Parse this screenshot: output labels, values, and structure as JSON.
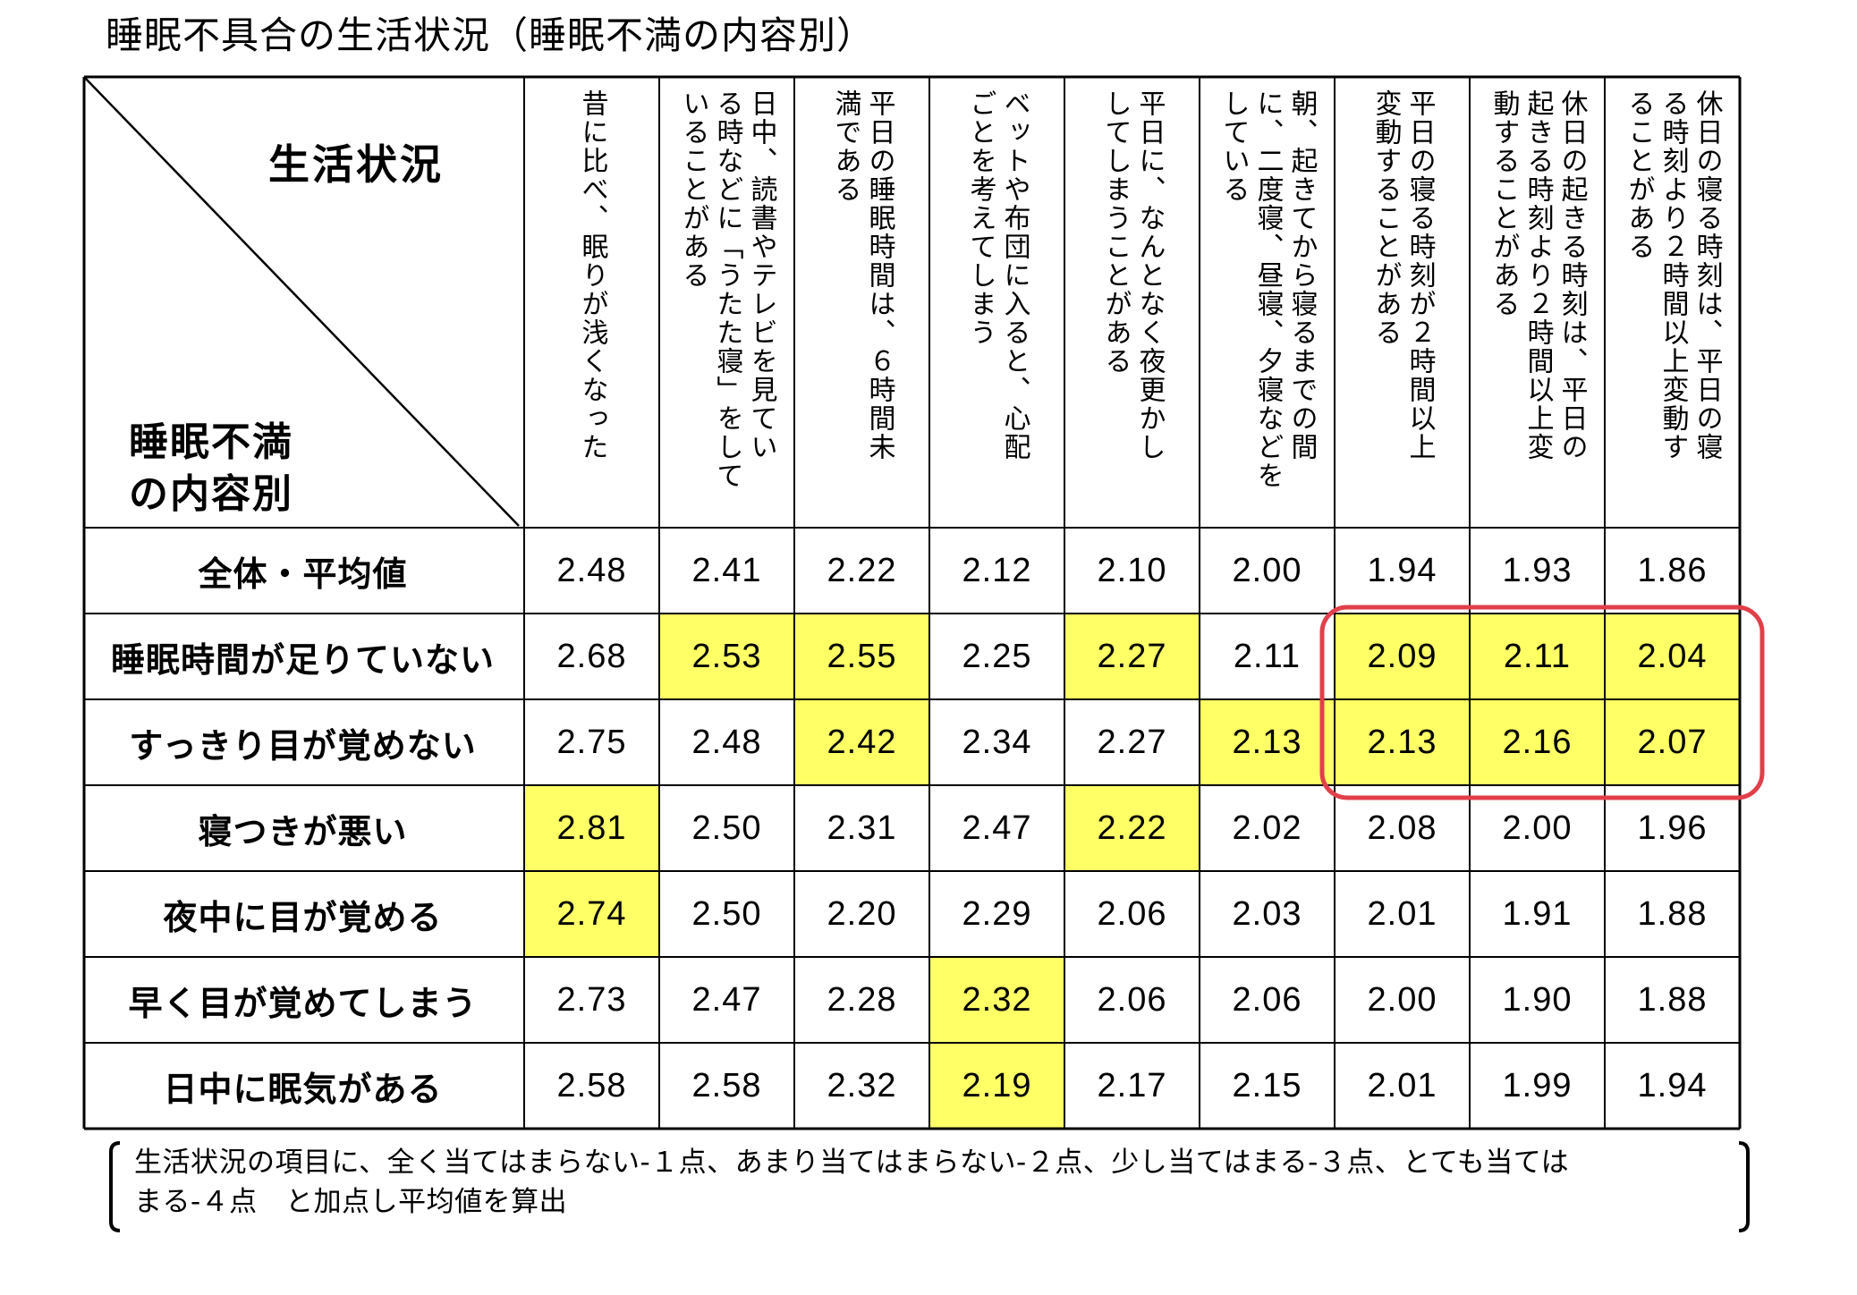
{
  "title": "睡眠不具合の生活状況（睡眠不満の内容別）",
  "corner": {
    "top_label": "生活状況",
    "bottom_label_line1": "睡眠不満",
    "bottom_label_line2": "の内容別"
  },
  "colors": {
    "highlight": "#ffff66",
    "frame": "#e0404a",
    "grid": "#000000"
  },
  "chart_data": {
    "type": "table",
    "columns": [
      {
        "lines": [
          "昔に比べ、眠りが浅くなった"
        ]
      },
      {
        "lines": [
          "日中、読書やテレビを見てい",
          "る時などに「うたた寝」をして",
          "いることがある"
        ]
      },
      {
        "lines": [
          "平日の睡眠時間は、６時間未",
          "満である"
        ]
      },
      {
        "lines": [
          "ベットや布団に入ると、心配",
          "ごとを考えてしまう"
        ]
      },
      {
        "lines": [
          "平日に、なんとなく夜更かし",
          "してしまうことがある"
        ]
      },
      {
        "lines": [
          "朝、起きてから寝るまでの間",
          "に、二度寝、昼寝、夕寝などを",
          "している"
        ]
      },
      {
        "lines": [
          "平日の寝る時刻が２時間以上",
          "変動することがある"
        ]
      },
      {
        "lines": [
          "休日の起きる時刻は、平日の",
          "起きる時刻より２時間以上変",
          "動することがある"
        ]
      },
      {
        "lines": [
          "休日の寝る時刻は、平日の寝",
          "る時刻より２時間以上変動す",
          "ることがある"
        ]
      }
    ],
    "rows": [
      {
        "label": "全体・平均値",
        "values": [
          "2.48",
          "2.41",
          "2.22",
          "2.12",
          "2.10",
          "2.00",
          "1.94",
          "1.93",
          "1.86"
        ],
        "highlight": []
      },
      {
        "label": "睡眠時間が足りていない",
        "values": [
          "2.68",
          "2.53",
          "2.55",
          "2.25",
          "2.27",
          "2.11",
          "2.09",
          "2.11",
          "2.04"
        ],
        "highlight": [
          1,
          2,
          4,
          6,
          7,
          8
        ]
      },
      {
        "label": "すっきり目が覚めない",
        "values": [
          "2.75",
          "2.48",
          "2.42",
          "2.34",
          "2.27",
          "2.13",
          "2.13",
          "2.16",
          "2.07"
        ],
        "highlight": [
          2,
          5,
          6,
          7,
          8
        ]
      },
      {
        "label": "寝つきが悪い",
        "values": [
          "2.81",
          "2.50",
          "2.31",
          "2.47",
          "2.22",
          "2.02",
          "2.08",
          "2.00",
          "1.96"
        ],
        "highlight": [
          0,
          4
        ]
      },
      {
        "label": "夜中に目が覚める",
        "values": [
          "2.74",
          "2.50",
          "2.20",
          "2.29",
          "2.06",
          "2.03",
          "2.01",
          "1.91",
          "1.88"
        ],
        "highlight": [
          0
        ]
      },
      {
        "label": "早く目が覚めてしまう",
        "values": [
          "2.73",
          "2.47",
          "2.28",
          "2.32",
          "2.06",
          "2.06",
          "2.00",
          "1.90",
          "1.88"
        ],
        "highlight": [
          3
        ]
      },
      {
        "label": "日中に眠気がある",
        "values": [
          "2.58",
          "2.58",
          "2.32",
          "2.19",
          "2.17",
          "2.15",
          "2.01",
          "1.99",
          "1.94"
        ],
        "highlight": [
          3
        ]
      }
    ]
  },
  "note": {
    "line1": "生活状況の項目に、全く当てはまらない-１点、あまり当てはまらない-２点、少し当てはまる-３点、とても当ては",
    "line2": "まる-４点　と加点し平均値を算出"
  }
}
